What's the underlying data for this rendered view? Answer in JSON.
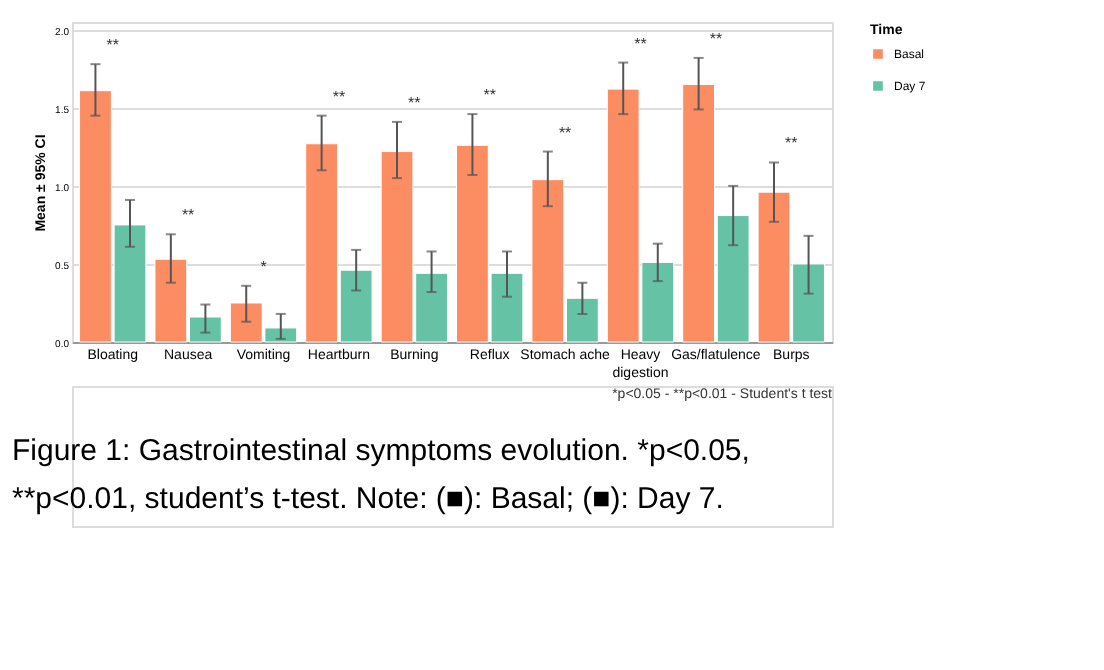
{
  "chart_data": {
    "type": "bar",
    "ylabel": "Mean ± 95% CI",
    "legend_title": "Time",
    "legend": "top right",
    "categories": [
      "Bloating",
      "Nausea",
      "Vomiting",
      "Heartburn",
      "Burning",
      "Reflux",
      "Stomach ache",
      "Heavy digestion",
      "Gas/flatulence",
      "Burps"
    ],
    "series": [
      {
        "name": "Basal",
        "color": "#fc8d62",
        "values": [
          1.61,
          0.53,
          0.25,
          1.27,
          1.22,
          1.26,
          1.04,
          1.62,
          1.65,
          0.96
        ],
        "errors": [
          [
            1.45,
            1.78
          ],
          [
            0.38,
            0.69
          ],
          [
            0.13,
            0.36
          ],
          [
            1.1,
            1.45
          ],
          [
            1.05,
            1.41
          ],
          [
            1.07,
            1.46
          ],
          [
            0.87,
            1.22
          ],
          [
            1.46,
            1.79
          ],
          [
            1.49,
            1.82
          ],
          [
            0.77,
            1.15
          ]
        ]
      },
      {
        "name": "Day 7",
        "color": "#66c2a5",
        "values": [
          0.75,
          0.16,
          0.09,
          0.46,
          0.44,
          0.44,
          0.28,
          0.51,
          0.81,
          0.5
        ],
        "errors": [
          [
            0.61,
            0.91
          ],
          [
            0.06,
            0.24
          ],
          [
            0.02,
            0.18
          ],
          [
            0.33,
            0.59
          ],
          [
            0.32,
            0.58
          ],
          [
            0.29,
            0.58
          ],
          [
            0.18,
            0.38
          ],
          [
            0.39,
            0.63
          ],
          [
            0.62,
            1.0
          ],
          [
            0.31,
            0.68
          ]
        ]
      }
    ],
    "ylim": [
      0,
      2.05
    ],
    "yticks": [
      {
        "value": 0,
        "label": "0.0"
      },
      0.5,
      {
        "value": 1,
        "label": "1.0"
      },
      1.5,
      {
        "value": 2,
        "label": "2.0"
      }
    ],
    "grid": "y",
    "annotations": [
      "**",
      "**",
      "*",
      "**",
      "**",
      "**",
      "**",
      "**",
      "**",
      "**",
      "*p<0.05 - **p<0.01 - Student's t test",
      "Figure 1: Gastrointestinal symptoms evolution. *p<0.05,",
      "**p<0.01, student’s t-test. Note: (■): Basal; (■): Day 7."
    ]
  }
}
